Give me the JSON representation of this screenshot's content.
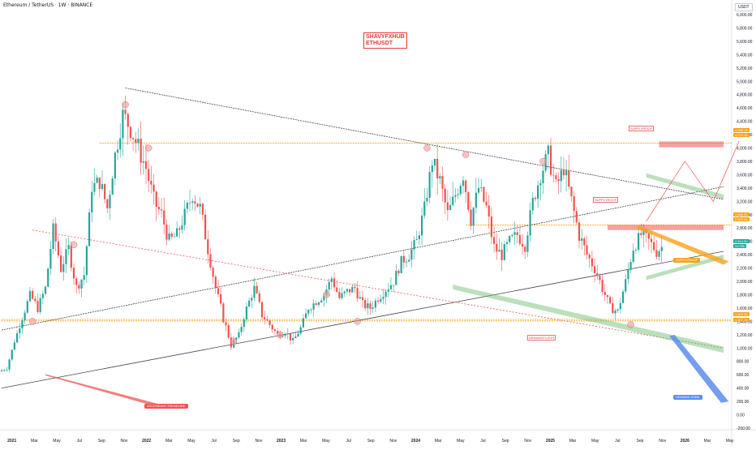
{
  "header": {
    "title": "Ethereum / TetherUS · 1W · BINANCE",
    "unit": "USDT",
    "watermark_line1": "SHAVYFXHUB",
    "watermark_line2": "ETHUSDT"
  },
  "chart_data": {
    "type": "candlestick",
    "title": "Ethereum / TetherUS · 1W · BINANCE",
    "ylabel": "USDT",
    "ylim": [
      -200,
      6000
    ],
    "y_ticks": [
      "6,000.00",
      "5,800.00",
      "5,600.00",
      "5,400.00",
      "5,200.00",
      "5,000.00",
      "4,800.00",
      "4,600.00",
      "4,400.00",
      "4,200.00",
      "4,000.00",
      "3,800.00",
      "3,600.00",
      "3,400.00",
      "3,200.00",
      "3,000.00",
      "2,800.00",
      "2,600.00",
      "2,400.00",
      "2,200.00",
      "2,000.00",
      "1,800.00",
      "1,600.00",
      "1,400.00",
      "1,200.00",
      "1,000.00",
      "800.00",
      "600.00",
      "400.00",
      "200.00",
      "0.00",
      "-200.00"
    ],
    "x_ticks": [
      "2021",
      "Mar",
      "May",
      "Jul",
      "Sep",
      "Nov",
      "2022",
      "Mar",
      "May",
      "Jul",
      "Sep",
      "Nov",
      "2023",
      "Mar",
      "May",
      "Jul",
      "Sep",
      "Nov",
      "2024",
      "Mar",
      "May",
      "Jul",
      "Sep",
      "Nov",
      "2025",
      "Mar",
      "May",
      "Jul",
      "Sep",
      "Nov",
      "2026",
      "Mar",
      "May"
    ],
    "price_labels": [
      {
        "text": "4,098.13",
        "value": 4098.13,
        "color": "#f7a21b"
      },
      {
        "text": "4,074.24",
        "value": 4074.24,
        "color": "#f7a21b"
      },
      {
        "text": "2,846.33",
        "value": 2846.33,
        "color": "#f7a21b"
      },
      {
        "text": "2,823.95",
        "value": 2823.95,
        "color": "#f7a21b"
      },
      {
        "text": "2,514.00",
        "value": 2514.0,
        "color": "#26a69a"
      },
      {
        "text": "2d 05h",
        "value": 2440,
        "color": "#26a69a"
      },
      {
        "text": "1,429.38",
        "value": 1429.38,
        "color": "#f7a21b"
      },
      {
        "text": "1,407.79",
        "value": 1407.79,
        "color": "#f7a21b"
      }
    ],
    "annotations": [
      {
        "text": "ASCENDING TRENDLINE",
        "color": "#ef5350"
      },
      {
        "text": "DEMAND ZONE",
        "color": "#5b8def"
      },
      {
        "text": "SUPPLYROOF",
        "color": "#f7a21b"
      },
      {
        "text": "SUPPLYROOF",
        "color": "#e53935"
      },
      {
        "text": "SUPPLYROOF",
        "color": "#e53935"
      },
      {
        "text": "DEMANDFLOOR",
        "color": "#e53935"
      }
    ],
    "price_path": [
      [
        0,
        650
      ],
      [
        3,
        700
      ],
      [
        6,
        1100
      ],
      [
        9,
        1450
      ],
      [
        12,
        1800
      ],
      [
        15,
        1600
      ],
      [
        18,
        1900
      ],
      [
        21,
        2800
      ],
      [
        24,
        2200
      ],
      [
        27,
        2500
      ],
      [
        30,
        1900
      ],
      [
        33,
        2100
      ],
      [
        36,
        3400
      ],
      [
        39,
        3500
      ],
      [
        42,
        3100
      ],
      [
        45,
        3900
      ],
      [
        48,
        4500
      ],
      [
        51,
        4300
      ],
      [
        54,
        4000
      ],
      [
        57,
        3700
      ],
      [
        60,
        3200
      ],
      [
        63,
        3000
      ],
      [
        66,
        2600
      ],
      [
        69,
        2700
      ],
      [
        72,
        3000
      ],
      [
        75,
        3300
      ],
      [
        78,
        3100
      ],
      [
        81,
        2500
      ],
      [
        84,
        1900
      ],
      [
        87,
        1450
      ],
      [
        90,
        1050
      ],
      [
        93,
        1200
      ],
      [
        96,
        1600
      ],
      [
        99,
        1900
      ],
      [
        102,
        1500
      ],
      [
        105,
        1350
      ],
      [
        108,
        1200
      ],
      [
        111,
        1250
      ],
      [
        114,
        1100
      ],
      [
        117,
        1300
      ],
      [
        120,
        1600
      ],
      [
        123,
        1700
      ],
      [
        126,
        1800
      ],
      [
        129,
        2050
      ],
      [
        132,
        1750
      ],
      [
        135,
        1850
      ],
      [
        138,
        1900
      ],
      [
        141,
        1650
      ],
      [
        144,
        1600
      ],
      [
        147,
        1750
      ],
      [
        150,
        1880
      ],
      [
        153,
        2000
      ],
      [
        156,
        2300
      ],
      [
        159,
        2400
      ],
      [
        162,
        2600
      ],
      [
        165,
        3100
      ],
      [
        168,
        3800
      ],
      [
        171,
        3500
      ],
      [
        174,
        3000
      ],
      [
        177,
        3300
      ],
      [
        180,
        3600
      ],
      [
        183,
        2950
      ],
      [
        186,
        3400
      ],
      [
        189,
        3100
      ],
      [
        192,
        2500
      ],
      [
        195,
        2400
      ],
      [
        198,
        2600
      ],
      [
        201,
        2700
      ],
      [
        204,
        2550
      ],
      [
        207,
        3200
      ],
      [
        210,
        3600
      ],
      [
        213,
        3900
      ],
      [
        216,
        3400
      ],
      [
        219,
        3700
      ],
      [
        222,
        3200
      ],
      [
        225,
        2700
      ],
      [
        228,
        2400
      ],
      [
        231,
        2200
      ],
      [
        234,
        1900
      ],
      [
        237,
        1600
      ],
      [
        240,
        1550
      ],
      [
        243,
        2000
      ],
      [
        246,
        2500
      ],
      [
        249,
        2700
      ],
      [
        252,
        2600
      ],
      [
        255,
        2450
      ],
      [
        257,
        2514
      ]
    ]
  }
}
